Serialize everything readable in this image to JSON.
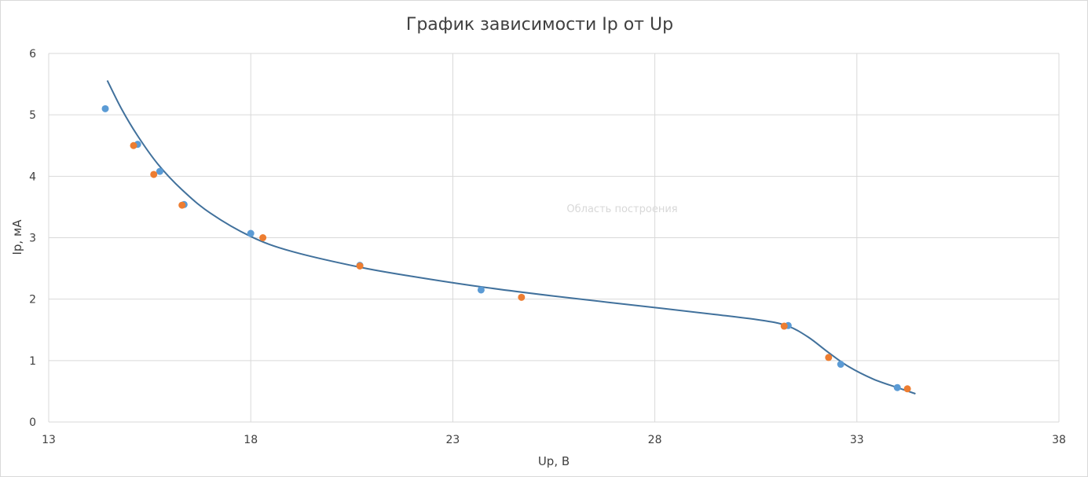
{
  "chart_data": {
    "type": "scatter",
    "title": "График зависимости Ip от Up",
    "xlabel": "Up, В",
    "ylabel": "Ip, мА",
    "xlim": [
      13,
      38
    ],
    "ylim": [
      0,
      6
    ],
    "xticks": [
      13,
      18,
      23,
      28,
      33,
      38
    ],
    "yticks": [
      0,
      1,
      2,
      3,
      4,
      5,
      6
    ],
    "grid": true,
    "hover_label": "Область построения",
    "colors": {
      "blue": "#5b9bd5",
      "orange": "#ed7d31",
      "curve": "#41719c",
      "grid": "#d9d9d9"
    },
    "series": [
      {
        "color": "#5b9bd5",
        "points": [
          [
            14.4,
            5.1
          ],
          [
            15.2,
            4.52
          ],
          [
            15.75,
            4.08
          ],
          [
            16.35,
            3.54
          ],
          [
            18.0,
            3.07
          ],
          [
            20.7,
            2.55
          ],
          [
            23.7,
            2.15
          ],
          [
            31.3,
            1.57
          ],
          [
            32.6,
            0.94
          ],
          [
            34.0,
            0.56
          ]
        ]
      },
      {
        "color": "#ed7d31",
        "points": [
          [
            15.1,
            4.5
          ],
          [
            15.6,
            4.03
          ],
          [
            16.3,
            3.53
          ],
          [
            18.3,
            3.0
          ],
          [
            20.7,
            2.54
          ],
          [
            24.7,
            2.03
          ],
          [
            31.2,
            1.56
          ],
          [
            32.3,
            1.05
          ],
          [
            34.25,
            0.54
          ]
        ]
      }
    ],
    "trendline": {
      "color": "#41719c",
      "points": [
        [
          14.45,
          5.56
        ],
        [
          14.8,
          5.1
        ],
        [
          15.2,
          4.66
        ],
        [
          15.7,
          4.2
        ],
        [
          16.3,
          3.78
        ],
        [
          17.0,
          3.4
        ],
        [
          18.0,
          3.02
        ],
        [
          19.0,
          2.78
        ],
        [
          20.7,
          2.52
        ],
        [
          22.0,
          2.37
        ],
        [
          23.7,
          2.2
        ],
        [
          25.5,
          2.05
        ],
        [
          27.5,
          1.9
        ],
        [
          29.5,
          1.75
        ],
        [
          30.7,
          1.65
        ],
        [
          31.3,
          1.56
        ],
        [
          31.8,
          1.38
        ],
        [
          32.3,
          1.13
        ],
        [
          32.8,
          0.9
        ],
        [
          33.4,
          0.7
        ],
        [
          34.0,
          0.56
        ],
        [
          34.45,
          0.46
        ]
      ]
    }
  }
}
